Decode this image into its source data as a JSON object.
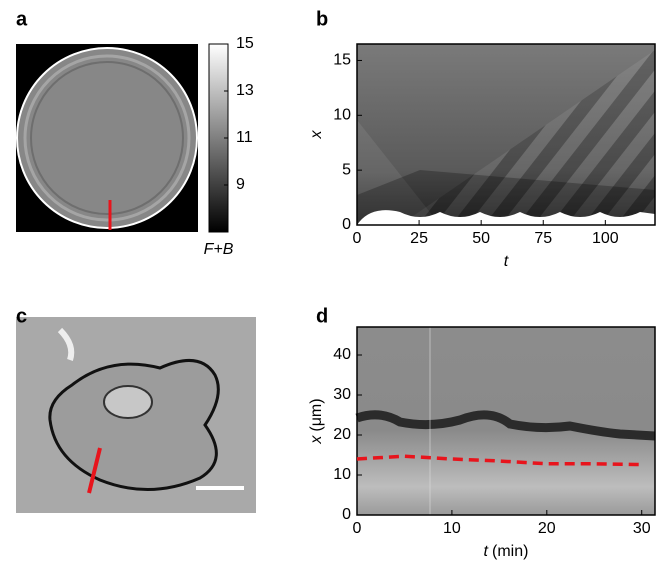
{
  "chart_data": [
    {
      "type": "colorbar",
      "label": "a",
      "colorbar_label": "F+B",
      "ylim": [
        7,
        15
      ],
      "yticks": [
        9,
        11,
        13,
        15
      ]
    },
    {
      "type": "heatmap",
      "label": "b",
      "xlabel": "t",
      "ylabel": "x",
      "xlim": [
        0,
        120
      ],
      "ylim": [
        0,
        16.5
      ],
      "xticks": [
        0,
        25,
        50,
        75,
        100
      ],
      "yticks": [
        0,
        5,
        10,
        15
      ]
    },
    {
      "type": "image",
      "label": "c"
    },
    {
      "type": "line",
      "label": "d",
      "xlabel": "t",
      "xlabel_unit": "(min)",
      "ylabel": "x",
      "ylabel_unit": "(μm)",
      "xlim": [
        0,
        31.4
      ],
      "ylim": [
        0,
        47
      ],
      "xticks": [
        0,
        10,
        20,
        30
      ],
      "yticks": [
        0,
        10,
        20,
        30,
        40
      ],
      "series": [
        {
          "color": "#e8141c",
          "x": [
            0,
            5,
            10,
            15,
            20,
            25,
            30
          ],
          "values": [
            14,
            14.7,
            14,
            13.5,
            12.8,
            12.8,
            12.6
          ]
        }
      ]
    }
  ]
}
